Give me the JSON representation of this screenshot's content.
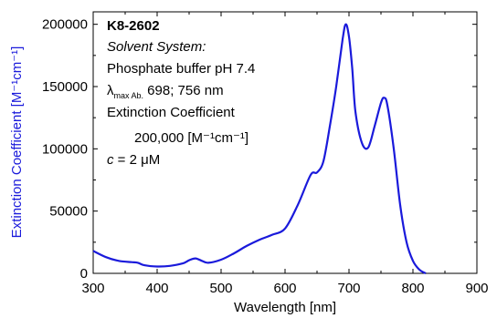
{
  "chart_data": {
    "type": "line",
    "xlabel": "Wavelength [nm]",
    "ylabel": "Extinction Coefficient [M⁻¹cm⁻¹]",
    "xlim": [
      300,
      900
    ],
    "ylim": [
      0,
      210000
    ],
    "xticks": [
      300,
      400,
      500,
      600,
      700,
      800,
      900
    ],
    "yticks": [
      0,
      50000,
      100000,
      150000,
      200000
    ],
    "ytick_labels": [
      "0",
      "50000",
      "100000",
      "150000",
      "200000"
    ],
    "grid": false,
    "line_color": "#1a1adb",
    "ylabel_color": "#1a1adb",
    "series": [
      {
        "x": [
          300,
          320,
          340,
          360,
          370,
          380,
          400,
          420,
          440,
          450,
          460,
          470,
          480,
          500,
          520,
          540,
          560,
          580,
          600,
          620,
          640,
          650,
          660,
          670,
          680,
          690,
          695,
          700,
          705,
          710,
          720,
          730,
          740,
          750,
          755,
          760,
          770,
          780,
          790,
          800,
          810,
          820
        ],
        "y": [
          18000,
          13000,
          10000,
          9000,
          8500,
          6500,
          5500,
          6000,
          8000,
          10500,
          12000,
          10000,
          8500,
          11000,
          16000,
          22000,
          27000,
          31000,
          36000,
          55000,
          79000,
          81000,
          90000,
          118000,
          150000,
          188000,
          200000,
          190000,
          165000,
          130000,
          105000,
          101000,
          118000,
          137000,
          141000,
          135000,
          100000,
          55000,
          25000,
          10000,
          3000,
          0
        ]
      }
    ],
    "annotations": {
      "compound": "K8-2602",
      "solvent_heading": "Solvent System:",
      "solvent": "Phosphate buffer pH 7.4",
      "lambda_symbol": "λ",
      "lambda_subscript": "max Ab.",
      "lambda_values": " 698; 756 nm",
      "ext_heading": "Extinction Coefficient",
      "ext_value": "200,000 [M⁻¹cm⁻¹]",
      "conc_var": "c",
      "conc_value": " = 2 μM"
    }
  }
}
